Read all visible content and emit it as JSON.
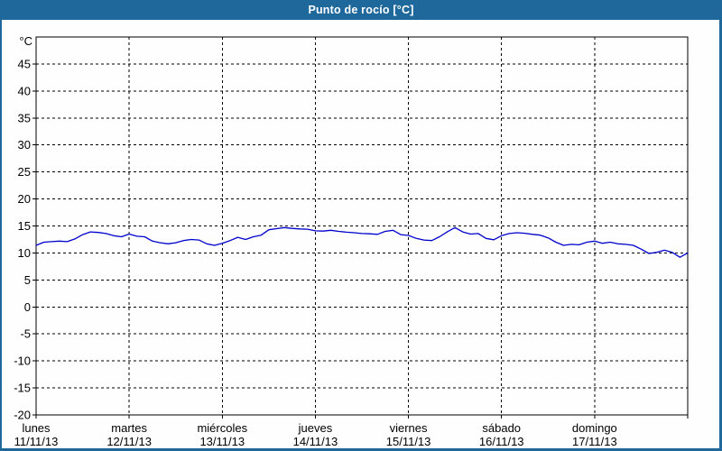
{
  "window": {
    "title": "Punto de rocío [°C]"
  },
  "colors": {
    "titlebar_bg": "#1E689C",
    "window_border": "#1E689C",
    "panel_bg": "#FDFEFD",
    "grid": "#000000",
    "frame": "#000000",
    "text": "#000000",
    "line": "#0000CC"
  },
  "chart_data": {
    "type": "line",
    "title": "Punto de rocío [°C]",
    "ylabel": "°C",
    "ylim": [
      -20,
      50
    ],
    "yticks": [
      -20,
      -15,
      -10,
      -5,
      0,
      5,
      10,
      15,
      20,
      25,
      30,
      35,
      40,
      45
    ],
    "grid": "dashed",
    "legend": "none",
    "x_axis": {
      "total_hours": 168,
      "days": [
        {
          "name": "lunes",
          "date": "11/11/13"
        },
        {
          "name": "martes",
          "date": "12/11/13"
        },
        {
          "name": "miércoles",
          "date": "13/11/13"
        },
        {
          "name": "jueves",
          "date": "14/11/13"
        },
        {
          "name": "viernes",
          "date": "15/11/13"
        },
        {
          "name": "sábado",
          "date": "16/11/13"
        },
        {
          "name": "domingo",
          "date": "17/11/13"
        }
      ]
    },
    "series": [
      {
        "name": "Punto de rocío",
        "color": "#0000CC",
        "x_hours_step": 2,
        "values": [
          11.4,
          12.0,
          12.1,
          12.2,
          12.1,
          12.6,
          13.4,
          13.9,
          13.8,
          13.6,
          13.2,
          13.0,
          13.5,
          13.1,
          13.0,
          12.2,
          11.9,
          11.7,
          11.9,
          12.3,
          12.5,
          12.4,
          11.7,
          11.4,
          11.8,
          12.3,
          12.9,
          12.5,
          13.0,
          13.3,
          14.3,
          14.5,
          14.7,
          14.55,
          14.45,
          14.4,
          14.1,
          14.05,
          14.2,
          14.0,
          13.85,
          13.75,
          13.6,
          13.55,
          13.45,
          14.0,
          14.2,
          13.4,
          13.25,
          12.7,
          12.4,
          12.3,
          13.0,
          13.9,
          14.7,
          13.9,
          13.5,
          13.6,
          12.7,
          12.45,
          13.2,
          13.6,
          13.75,
          13.65,
          13.45,
          13.3,
          12.8,
          12.0,
          11.4,
          11.6,
          11.5,
          12.0,
          12.2,
          11.8,
          12.0,
          11.7,
          11.6,
          11.4,
          10.7,
          9.9,
          10.1,
          10.5,
          10.1,
          9.2,
          10.0
        ]
      }
    ]
  }
}
